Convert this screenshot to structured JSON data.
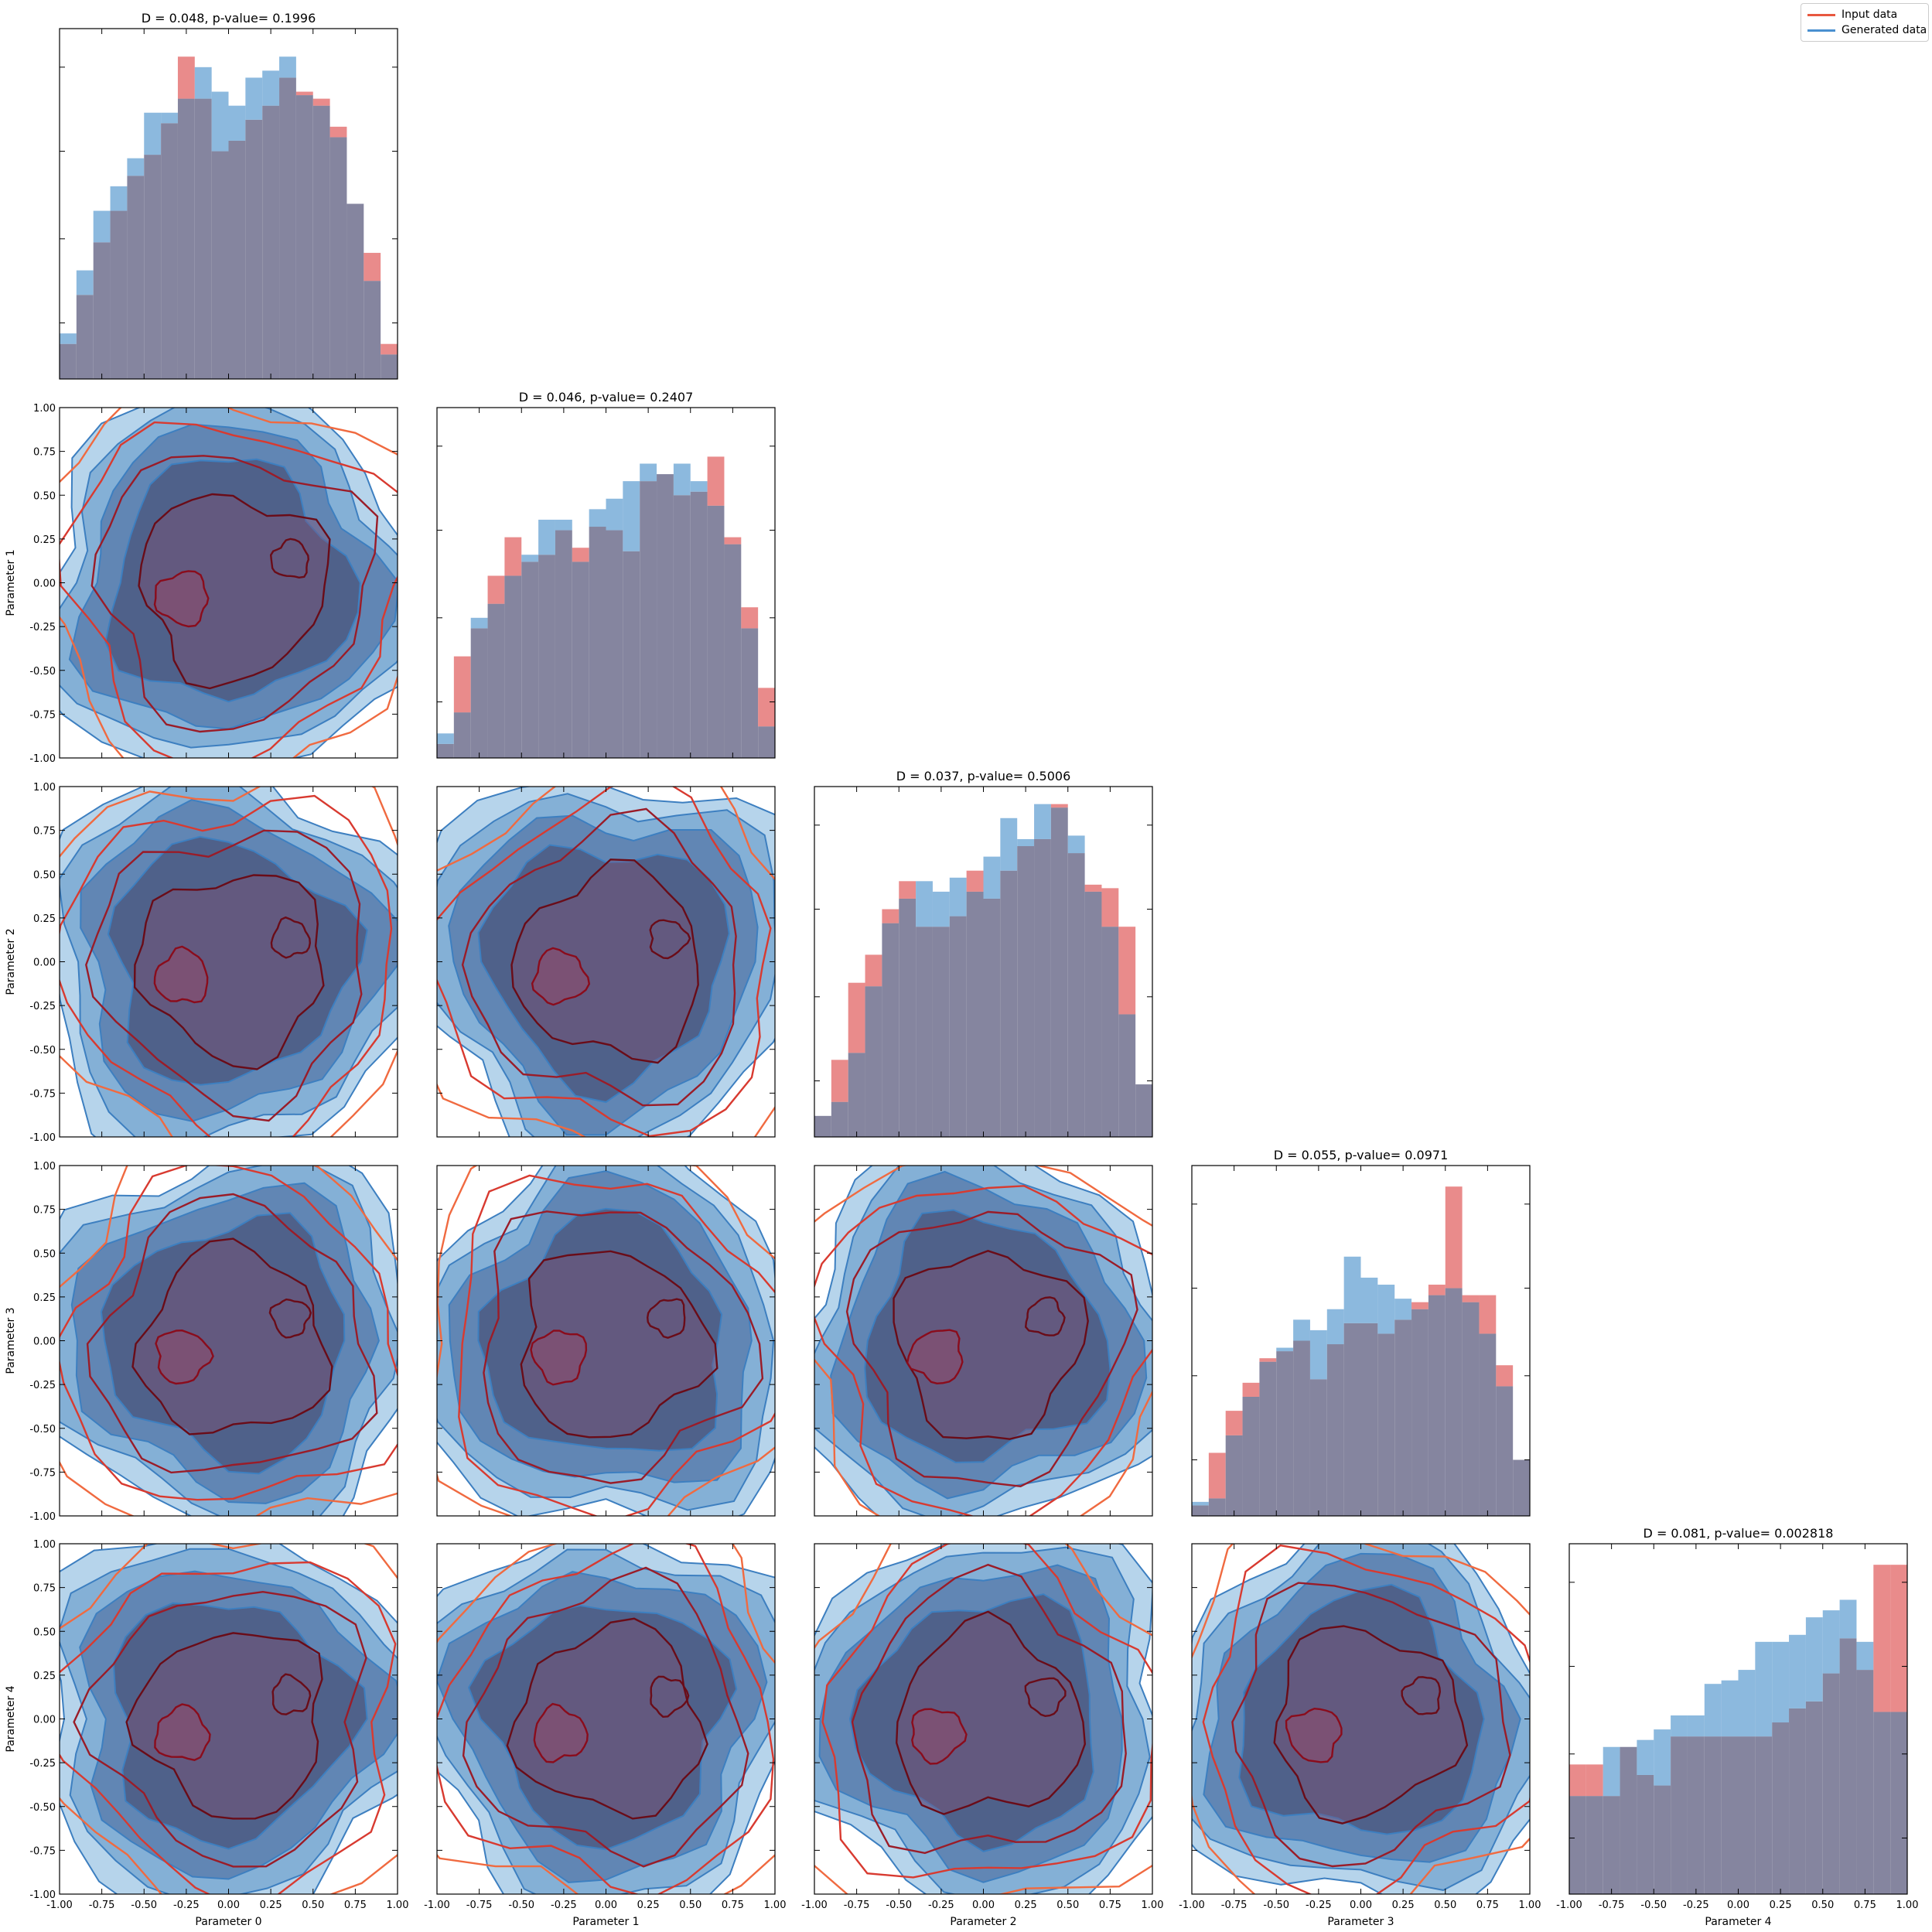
{
  "chart_data": {
    "type": "corner",
    "parameters": [
      "Parameter 0",
      "Parameter 1",
      "Parameter 2",
      "Parameter 3",
      "Parameter 4"
    ],
    "axis_range": [
      -1.0,
      1.0
    ],
    "tick_values": [
      -1.0,
      -0.75,
      -0.5,
      -0.25,
      0.0,
      0.25,
      0.5,
      0.75,
      1.0
    ],
    "tick_labels": [
      "-1.00",
      "-0.75",
      "-0.50",
      "-0.25",
      "0.00",
      "0.25",
      "0.50",
      "0.75",
      "1.00"
    ],
    "legend": {
      "placement": "top-right",
      "entries": [
        "Input data",
        "Generated data"
      ]
    },
    "colors": {
      "input": "#e05a5a",
      "generated": "#6fa8d6",
      "overlap": "#85859f",
      "input_line": "#e8583f",
      "generated_line": "#4a90d0"
    },
    "bin_edges": [
      -1.0,
      -0.9,
      -0.8,
      -0.7,
      -0.6,
      -0.5,
      -0.4,
      -0.3,
      -0.2,
      -0.1,
      0.0,
      0.1,
      0.2,
      0.3,
      0.4,
      0.5,
      0.6,
      0.7,
      0.8,
      0.9,
      1.0
    ],
    "histograms": [
      {
        "parameter": "Parameter 0",
        "title": "D = 0.048, p-value= 0.1996",
        "input": [
          0.1,
          0.24,
          0.39,
          0.48,
          0.58,
          0.64,
          0.73,
          0.92,
          0.8,
          0.65,
          0.68,
          0.74,
          0.78,
          0.86,
          0.82,
          0.8,
          0.72,
          0.5,
          0.36,
          0.1
        ],
        "generated": [
          0.13,
          0.31,
          0.48,
          0.55,
          0.63,
          0.76,
          0.76,
          0.8,
          0.89,
          0.82,
          0.78,
          0.86,
          0.88,
          0.92,
          0.81,
          0.78,
          0.69,
          0.5,
          0.28,
          0.07
        ]
      },
      {
        "parameter": "Parameter 1",
        "title": "D = 0.046, p-value= 0.2407",
        "input": [
          0.04,
          0.29,
          0.37,
          0.52,
          0.63,
          0.56,
          0.58,
          0.65,
          0.6,
          0.66,
          0.65,
          0.59,
          0.79,
          0.81,
          0.75,
          0.76,
          0.86,
          0.63,
          0.43,
          0.2
        ],
        "generated": [
          0.07,
          0.13,
          0.4,
          0.44,
          0.52,
          0.58,
          0.68,
          0.68,
          0.56,
          0.71,
          0.74,
          0.79,
          0.84,
          0.81,
          0.84,
          0.79,
          0.72,
          0.61,
          0.37,
          0.09
        ]
      },
      {
        "parameter": "Parameter 2",
        "title": "D = 0.037, p-value= 0.5006",
        "input": [
          0.06,
          0.22,
          0.44,
          0.52,
          0.65,
          0.73,
          0.6,
          0.6,
          0.63,
          0.76,
          0.68,
          0.76,
          0.83,
          0.85,
          0.95,
          0.81,
          0.72,
          0.71,
          0.6,
          0.15
        ],
        "generated": [
          0.06,
          0.1,
          0.24,
          0.43,
          0.61,
          0.68,
          0.73,
          0.7,
          0.74,
          0.7,
          0.8,
          0.91,
          0.85,
          0.95,
          0.94,
          0.86,
          0.7,
          0.6,
          0.35,
          0.15
        ]
      },
      {
        "parameter": "Parameter 3",
        "title": "D = 0.055, p-value= 0.0971",
        "input": [
          0.03,
          0.18,
          0.3,
          0.38,
          0.45,
          0.47,
          0.5,
          0.39,
          0.49,
          0.55,
          0.55,
          0.52,
          0.56,
          0.61,
          0.66,
          0.94,
          0.63,
          0.63,
          0.43,
          0.16
        ],
        "generated": [
          0.04,
          0.05,
          0.23,
          0.34,
          0.44,
          0.48,
          0.56,
          0.53,
          0.59,
          0.74,
          0.68,
          0.66,
          0.62,
          0.59,
          0.63,
          0.65,
          0.61,
          0.52,
          0.37,
          0.16
        ]
      },
      {
        "parameter": "Parameter 4",
        "title": "D = 0.081, p-value= 0.002818",
        "input": [
          0.37,
          0.37,
          0.28,
          0.42,
          0.34,
          0.31,
          0.45,
          0.45,
          0.45,
          0.45,
          0.45,
          0.45,
          0.49,
          0.53,
          0.55,
          0.63,
          0.73,
          0.64,
          0.94,
          0.94
        ],
        "generated": [
          0.28,
          0.28,
          0.42,
          0.42,
          0.44,
          0.47,
          0.51,
          0.51,
          0.6,
          0.61,
          0.64,
          0.72,
          0.72,
          0.74,
          0.79,
          0.81,
          0.84,
          0.72,
          0.52,
          0.52
        ]
      }
    ],
    "contour_panels": [
      {
        "x": "Parameter 0",
        "y": "Parameter 1"
      },
      {
        "x": "Parameter 0",
        "y": "Parameter 2"
      },
      {
        "x": "Parameter 1",
        "y": "Parameter 2"
      },
      {
        "x": "Parameter 0",
        "y": "Parameter 3"
      },
      {
        "x": "Parameter 1",
        "y": "Parameter 3"
      },
      {
        "x": "Parameter 2",
        "y": "Parameter 3"
      },
      {
        "x": "Parameter 0",
        "y": "Parameter 4"
      },
      {
        "x": "Parameter 1",
        "y": "Parameter 4"
      },
      {
        "x": "Parameter 2",
        "y": "Parameter 4"
      },
      {
        "x": "Parameter 3",
        "y": "Parameter 4"
      }
    ]
  }
}
